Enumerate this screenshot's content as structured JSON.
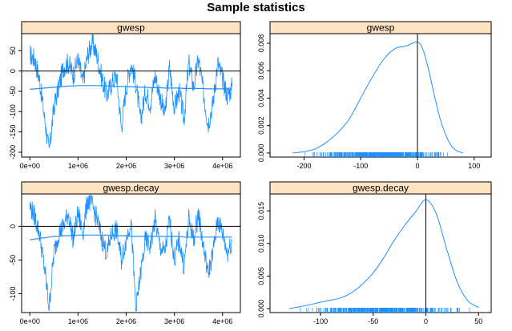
{
  "figure_title": "Sample statistics",
  "colors": {
    "series": "#1e90ff",
    "strip_bg": "#ffe4c4",
    "axis": "#000000",
    "background": "#ffffff"
  },
  "chart_data": [
    {
      "type": "line",
      "panel": "trace",
      "strip_label": "gwesp",
      "x_ticks": [
        0,
        1000000,
        2000000,
        3000000,
        4000000
      ],
      "x_tick_labels": [
        "0e+00",
        "1e+06",
        "2e+06",
        "3e+06",
        "4e+06"
      ],
      "y_ticks": [
        -200,
        -150,
        -100,
        -50,
        0,
        50
      ],
      "y_tick_labels": [
        "-200",
        "-150",
        "-100",
        "-50",
        "0",
        "50"
      ],
      "xlim": [
        -170000,
        4370000
      ],
      "ylim": [
        -212,
        92
      ],
      "reference_line_y": 0,
      "x": [
        0,
        100000,
        200000,
        300000,
        400000,
        500000,
        600000,
        700000,
        800000,
        900000,
        1000000,
        1100000,
        1200000,
        1300000,
        1400000,
        1500000,
        1600000,
        1700000,
        1800000,
        1900000,
        2000000,
        2100000,
        2200000,
        2300000,
        2400000,
        2500000,
        2600000,
        2700000,
        2800000,
        2900000,
        3000000,
        3100000,
        3200000,
        3300000,
        3400000,
        3500000,
        3600000,
        3700000,
        3800000,
        3900000,
        4000000,
        4100000,
        4200000
      ],
      "trace_values": [
        40,
        30,
        -20,
        -110,
        -200,
        -90,
        -40,
        10,
        20,
        -10,
        30,
        -30,
        40,
        70,
        35,
        -20,
        -60,
        -30,
        -10,
        -140,
        -40,
        20,
        -30,
        -120,
        -50,
        -80,
        -10,
        -60,
        -110,
        10,
        -90,
        -50,
        -120,
        20,
        -40,
        30,
        -50,
        -130,
        -80,
        20,
        -20,
        -60,
        -40
      ],
      "running_mean": [
        -45,
        -44,
        -43,
        -42,
        -41,
        -40,
        -39,
        -38,
        -37,
        -37,
        -36,
        -36,
        -36,
        -36,
        -36,
        -36,
        -37,
        -37,
        -38,
        -38,
        -38,
        -39,
        -39,
        -40,
        -40,
        -41,
        -41,
        -41,
        -42,
        -42,
        -42,
        -42,
        -43,
        -43,
        -43,
        -43,
        -43,
        -44,
        -44,
        -44,
        -44,
        -44,
        -44
      ]
    },
    {
      "type": "area",
      "panel": "density",
      "strip_label": "gwesp",
      "x_ticks": [
        -200,
        -100,
        0,
        100
      ],
      "x_tick_labels": [
        "-200",
        "-100",
        "0",
        "100"
      ],
      "y_ticks": [
        0,
        0.002,
        0.004,
        0.006,
        0.008
      ],
      "y_tick_labels": [
        "0.000",
        "0.002",
        "0.004",
        "0.006",
        "0.008"
      ],
      "xlim": [
        -260,
        130
      ],
      "ylim": [
        -0.0003,
        0.0087
      ],
      "reference_line_x": 0,
      "x": [
        -220,
        -200,
        -180,
        -160,
        -140,
        -120,
        -100,
        -80,
        -60,
        -40,
        -20,
        0,
        10,
        20,
        40,
        60,
        80
      ],
      "density": [
        0.0,
        0.0001,
        0.0003,
        0.0008,
        0.0015,
        0.0025,
        0.004,
        0.0055,
        0.0068,
        0.0076,
        0.0078,
        0.0081,
        0.0075,
        0.006,
        0.0025,
        0.0005,
        0.0
      ],
      "rug_range": [
        -215,
        80
      ]
    },
    {
      "type": "line",
      "panel": "trace",
      "strip_label": "gwesp.decay",
      "x_ticks": [
        0,
        1000000,
        2000000,
        3000000,
        4000000
      ],
      "x_tick_labels": [
        "0e+00",
        "1e+06",
        "2e+06",
        "3e+06",
        "4e+06"
      ],
      "y_ticks": [
        -100,
        -50,
        0
      ],
      "y_tick_labels": [
        "-100",
        "-50",
        "0"
      ],
      "xlim": [
        -170000,
        4370000
      ],
      "ylim": [
        -128,
        48
      ],
      "reference_line_y": 0,
      "x": [
        0,
        100000,
        200000,
        300000,
        400000,
        500000,
        600000,
        700000,
        800000,
        900000,
        1000000,
        1100000,
        1200000,
        1300000,
        1400000,
        1500000,
        1600000,
        1700000,
        1800000,
        1900000,
        2000000,
        2100000,
        2200000,
        2300000,
        2400000,
        2500000,
        2600000,
        2700000,
        2800000,
        2900000,
        3000000,
        3100000,
        3200000,
        3300000,
        3400000,
        3500000,
        3600000,
        3700000,
        3800000,
        3900000,
        4000000,
        4100000,
        4200000
      ],
      "trace_values": [
        30,
        15,
        -10,
        -60,
        -120,
        -40,
        -10,
        0,
        20,
        -20,
        20,
        -10,
        40,
        30,
        10,
        -20,
        -40,
        -10,
        -5,
        -50,
        -20,
        10,
        -125,
        -70,
        -20,
        -30,
        10,
        -30,
        -40,
        10,
        -50,
        -20,
        -60,
        10,
        -20,
        20,
        -30,
        -70,
        -40,
        10,
        -10,
        -40,
        -20
      ],
      "running_mean": [
        -20,
        -19,
        -18,
        -17,
        -16,
        -15,
        -15,
        -14,
        -14,
        -14,
        -13,
        -13,
        -13,
        -13,
        -13,
        -13,
        -13,
        -14,
        -14,
        -14,
        -14,
        -15,
        -15,
        -15,
        -15,
        -15,
        -15,
        -15,
        -15,
        -15,
        -15,
        -15,
        -16,
        -16,
        -16,
        -16,
        -16,
        -16,
        -16,
        -16,
        -16,
        -16,
        -16
      ]
    },
    {
      "type": "area",
      "panel": "density",
      "strip_label": "gwesp.decay",
      "x_ticks": [
        -100,
        -50,
        0,
        50
      ],
      "x_tick_labels": [
        "-100",
        "-50",
        "0",
        "50"
      ],
      "y_ticks": [
        0,
        0.005,
        0.01,
        0.015
      ],
      "y_tick_labels": [
        "0.000",
        "0.005",
        "0.010",
        "0.015"
      ],
      "xlim": [
        -148,
        62
      ],
      "ylim": [
        -0.0006,
        0.0176
      ],
      "reference_line_x": 0,
      "x": [
        -130,
        -120,
        -110,
        -100,
        -90,
        -80,
        -70,
        -60,
        -50,
        -40,
        -30,
        -20,
        -10,
        0,
        10,
        20,
        30,
        40,
        50
      ],
      "density": [
        0.0,
        0.0003,
        0.0006,
        0.001,
        0.0013,
        0.0017,
        0.0025,
        0.0038,
        0.0055,
        0.0078,
        0.0105,
        0.0128,
        0.0148,
        0.0167,
        0.0145,
        0.009,
        0.004,
        0.0012,
        0.0002
      ],
      "rug_range": [
        -135,
        50
      ]
    }
  ]
}
